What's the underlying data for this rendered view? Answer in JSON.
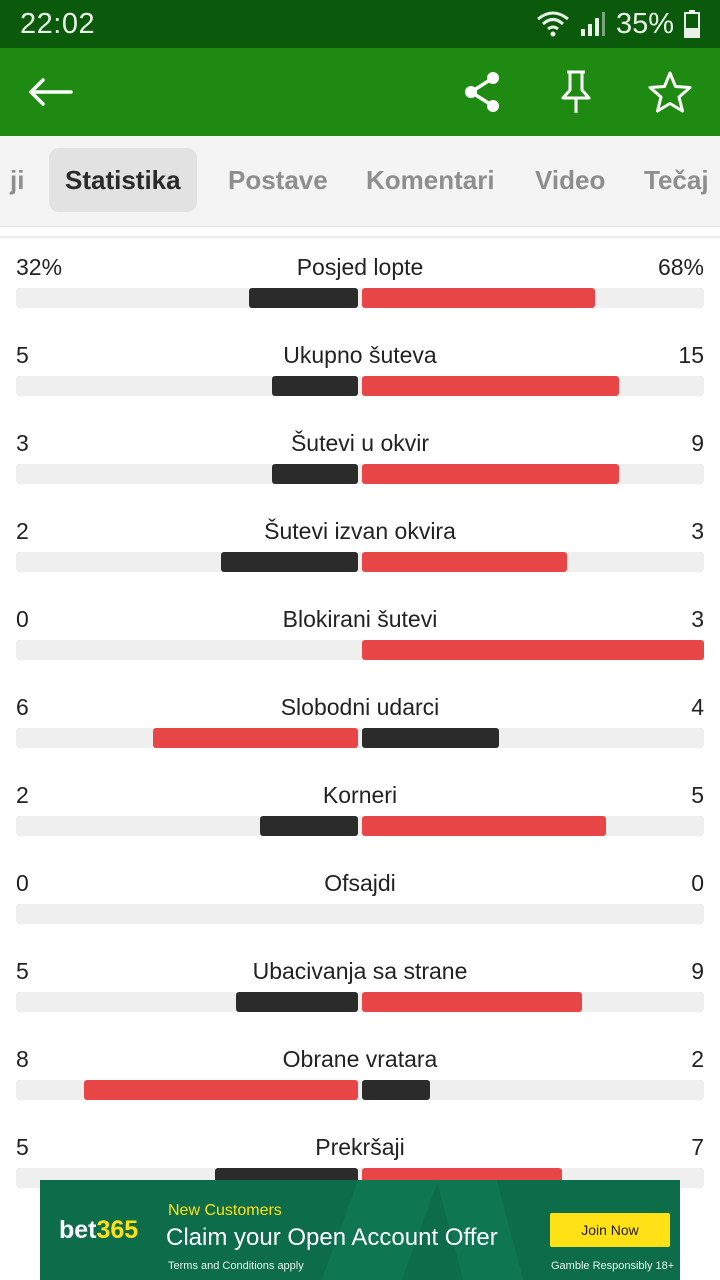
{
  "status_bar": {
    "time": "22:02",
    "battery": "35%"
  },
  "app_bar": {
    "back_icon": "arrow-left-icon",
    "share_icon": "share-icon",
    "pin_icon": "pin-icon",
    "favorite_icon": "star-icon"
  },
  "tabs": [
    {
      "label": "ji",
      "active": false
    },
    {
      "label": "Statistika",
      "active": true
    },
    {
      "label": "Postave",
      "active": false
    },
    {
      "label": "Komentari",
      "active": false
    },
    {
      "label": "Video",
      "active": false
    },
    {
      "label": "Tečaj",
      "active": false
    }
  ],
  "stats": [
    {
      "label": "Posjed lopte",
      "home": "32%",
      "away": "68%",
      "home_value": 32,
      "away_value": 68
    },
    {
      "label": "Ukupno šuteva",
      "home": "5",
      "away": "15",
      "home_value": 5,
      "away_value": 15
    },
    {
      "label": "Šutevi u okvir",
      "home": "3",
      "away": "9",
      "home_value": 3,
      "away_value": 9
    },
    {
      "label": "Šutevi izvan okvira",
      "home": "2",
      "away": "3",
      "home_value": 2,
      "away_value": 3
    },
    {
      "label": "Blokirani šutevi",
      "home": "0",
      "away": "3",
      "home_value": 0,
      "away_value": 3
    },
    {
      "label": "Slobodni udarci",
      "home": "6",
      "away": "4",
      "home_value": 6,
      "away_value": 4
    },
    {
      "label": "Korneri",
      "home": "2",
      "away": "5",
      "home_value": 2,
      "away_value": 5
    },
    {
      "label": "Ofsajdi",
      "home": "0",
      "away": "0",
      "home_value": 0,
      "away_value": 0
    },
    {
      "label": "Ubacivanja sa strane",
      "home": "5",
      "away": "9",
      "home_value": 5,
      "away_value": 9
    },
    {
      "label": "Obrane vratara",
      "home": "8",
      "away": "2",
      "home_value": 8,
      "away_value": 2
    },
    {
      "label": "Prekršaji",
      "home": "5",
      "away": "7",
      "home_value": 5,
      "away_value": 7
    }
  ],
  "colors": {
    "leader": "#e84646",
    "trailer": "#2b2b2b",
    "app_bar": "#1f8a12",
    "status_bar": "#0b5a0b"
  },
  "ad": {
    "brand": "bet365",
    "brand_main": "bet",
    "brand_accent": "365",
    "kicker": "New Customers",
    "headline": "Claim your Open Account Offer",
    "terms": "Terms and Conditions apply",
    "button": "Join Now",
    "gamble": "Gamble Responsibly  18+"
  }
}
